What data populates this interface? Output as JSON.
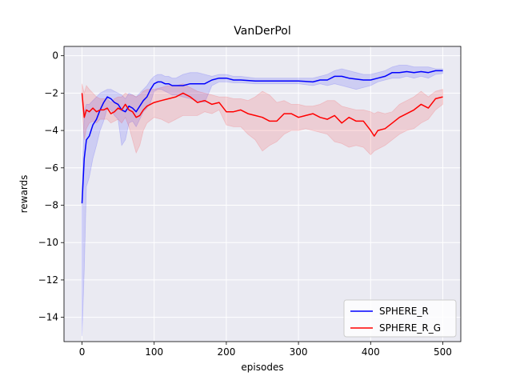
{
  "chart_data": {
    "type": "line",
    "title": "VanDerPol",
    "xlabel": "episodes",
    "ylabel": "rewards",
    "xlim": [
      -25,
      525
    ],
    "ylim": [
      -15.3,
      0.5
    ],
    "xticks": [
      0,
      100,
      200,
      300,
      400,
      500
    ],
    "yticks": [
      0,
      -2,
      -4,
      -6,
      -8,
      -10,
      -12,
      -14
    ],
    "grid": true,
    "legend_position": "bottom-right",
    "background": "#eaeaf2",
    "series": [
      {
        "name": "SPHERE_R",
        "color": "#0000ff",
        "band_color": "#0000ff",
        "x": [
          0,
          3,
          6,
          10,
          15,
          20,
          25,
          30,
          35,
          40,
          45,
          50,
          55,
          60,
          65,
          70,
          75,
          80,
          85,
          90,
          95,
          100,
          105,
          110,
          115,
          120,
          125,
          130,
          140,
          150,
          160,
          170,
          180,
          190,
          200,
          210,
          220,
          240,
          260,
          280,
          300,
          320,
          330,
          340,
          350,
          360,
          370,
          380,
          390,
          400,
          410,
          420,
          430,
          440,
          450,
          460,
          470,
          480,
          490,
          500
        ],
        "y": [
          -7.9,
          -5.5,
          -4.5,
          -4.3,
          -3.7,
          -3.4,
          -2.9,
          -2.5,
          -2.2,
          -2.3,
          -2.5,
          -2.6,
          -2.9,
          -3.0,
          -2.7,
          -2.8,
          -3.0,
          -2.7,
          -2.4,
          -2.2,
          -1.8,
          -1.5,
          -1.4,
          -1.4,
          -1.5,
          -1.5,
          -1.6,
          -1.6,
          -1.6,
          -1.5,
          -1.5,
          -1.5,
          -1.3,
          -1.2,
          -1.2,
          -1.3,
          -1.3,
          -1.35,
          -1.35,
          -1.35,
          -1.35,
          -1.4,
          -1.3,
          -1.3,
          -1.1,
          -1.1,
          -1.2,
          -1.25,
          -1.3,
          -1.3,
          -1.2,
          -1.1,
          -0.9,
          -0.9,
          -0.85,
          -0.9,
          -0.85,
          -0.9,
          -0.8,
          -0.8
        ],
        "upper": [
          -7.0,
          -3.0,
          -2.6,
          -2.6,
          -2.4,
          -2.2,
          -2.0,
          -1.9,
          -1.8,
          -1.8,
          -1.9,
          -2.0,
          -2.1,
          -2.3,
          -2.0,
          -2.1,
          -2.2,
          -2.0,
          -1.8,
          -1.6,
          -1.3,
          -1.1,
          -1.0,
          -1.0,
          -1.1,
          -1.1,
          -1.2,
          -1.2,
          -1.0,
          -0.9,
          -0.9,
          -1.0,
          -1.1,
          -1.0,
          -1.0,
          -1.1,
          -1.1,
          -1.2,
          -1.2,
          -1.2,
          -1.2,
          -1.2,
          -1.1,
          -1.0,
          -0.8,
          -0.7,
          -0.8,
          -0.9,
          -1.0,
          -1.0,
          -0.9,
          -0.8,
          -0.6,
          -0.5,
          -0.5,
          -0.6,
          -0.6,
          -0.6,
          -0.7,
          -0.7
        ],
        "lower": [
          -15.0,
          -11.5,
          -7.0,
          -6.5,
          -5.5,
          -4.8,
          -4.0,
          -3.5,
          -2.8,
          -2.9,
          -3.2,
          -3.4,
          -4.8,
          -4.5,
          -3.6,
          -3.5,
          -3.8,
          -3.4,
          -3.0,
          -2.8,
          -2.5,
          -1.9,
          -1.8,
          -1.8,
          -1.9,
          -2.0,
          -2.1,
          -2.1,
          -2.2,
          -2.3,
          -2.4,
          -2.5,
          -1.6,
          -1.4,
          -1.4,
          -1.45,
          -1.45,
          -1.5,
          -1.5,
          -1.5,
          -1.5,
          -1.6,
          -1.5,
          -1.6,
          -1.5,
          -1.6,
          -1.7,
          -1.8,
          -1.7,
          -1.6,
          -1.4,
          -1.3,
          -1.2,
          -1.2,
          -1.1,
          -1.2,
          -1.1,
          -1.2,
          -1.0,
          -0.95
        ]
      },
      {
        "name": "SPHERE_R_G",
        "color": "#ff0000",
        "band_color": "#ff0000",
        "x": [
          0,
          3,
          6,
          10,
          15,
          20,
          25,
          30,
          35,
          40,
          45,
          50,
          55,
          60,
          65,
          70,
          75,
          80,
          85,
          90,
          100,
          110,
          120,
          130,
          140,
          150,
          160,
          170,
          180,
          190,
          200,
          210,
          220,
          230,
          240,
          250,
          260,
          270,
          280,
          290,
          300,
          310,
          320,
          330,
          340,
          350,
          360,
          370,
          380,
          390,
          400,
          405,
          410,
          420,
          430,
          440,
          450,
          460,
          470,
          480,
          490,
          500
        ],
        "y": [
          -2.0,
          -3.3,
          -2.9,
          -3.0,
          -2.8,
          -3.0,
          -2.9,
          -2.9,
          -2.8,
          -3.1,
          -3.0,
          -2.8,
          -2.9,
          -2.6,
          -2.9,
          -3.0,
          -3.3,
          -3.2,
          -2.9,
          -2.7,
          -2.5,
          -2.4,
          -2.3,
          -2.2,
          -2.0,
          -2.2,
          -2.5,
          -2.4,
          -2.6,
          -2.5,
          -3.0,
          -3.0,
          -2.9,
          -3.1,
          -3.2,
          -3.3,
          -3.5,
          -3.5,
          -3.1,
          -3.1,
          -3.3,
          -3.2,
          -3.1,
          -3.3,
          -3.4,
          -3.2,
          -3.6,
          -3.3,
          -3.5,
          -3.5,
          -4.0,
          -4.3,
          -4.0,
          -3.9,
          -3.6,
          -3.3,
          -3.1,
          -2.9,
          -2.6,
          -2.8,
          -2.3,
          -2.2
        ],
        "upper": [
          -1.5,
          -2.0,
          -1.6,
          -1.8,
          -2.0,
          -2.2,
          -2.3,
          -2.3,
          -2.3,
          -2.5,
          -2.3,
          -2.2,
          -2.2,
          -2.0,
          -2.1,
          -2.1,
          -2.2,
          -2.1,
          -1.9,
          -1.8,
          -1.8,
          -1.7,
          -1.6,
          -1.6,
          -1.5,
          -1.7,
          -1.9,
          -2.0,
          -2.1,
          -2.2,
          -2.2,
          -2.3,
          -2.3,
          -2.4,
          -2.2,
          -1.9,
          -2.1,
          -2.5,
          -2.4,
          -2.6,
          -2.6,
          -2.7,
          -2.7,
          -2.6,
          -2.4,
          -2.4,
          -2.7,
          -2.8,
          -2.9,
          -2.9,
          -3.0,
          -3.1,
          -3.0,
          -3.1,
          -3.0,
          -2.6,
          -2.4,
          -2.2,
          -1.9,
          -2.2,
          -1.9,
          -1.8
        ],
        "lower": [
          -2.6,
          -4.5,
          -3.9,
          -3.6,
          -3.5,
          -3.6,
          -3.4,
          -3.4,
          -3.4,
          -3.6,
          -3.5,
          -3.4,
          -3.6,
          -3.3,
          -3.8,
          -4.5,
          -5.2,
          -4.8,
          -4.0,
          -3.6,
          -3.3,
          -3.4,
          -3.6,
          -3.4,
          -3.2,
          -3.2,
          -3.2,
          -3.0,
          -3.1,
          -2.9,
          -3.7,
          -3.8,
          -3.8,
          -4.2,
          -4.5,
          -5.1,
          -4.8,
          -4.6,
          -4.2,
          -4.0,
          -4.0,
          -3.9,
          -4.0,
          -4.1,
          -4.2,
          -4.6,
          -4.7,
          -4.9,
          -4.8,
          -4.9,
          -5.3,
          -5.1,
          -5.0,
          -4.8,
          -4.5,
          -4.2,
          -4.0,
          -3.9,
          -3.6,
          -3.4,
          -2.9,
          -2.6
        ]
      }
    ]
  }
}
